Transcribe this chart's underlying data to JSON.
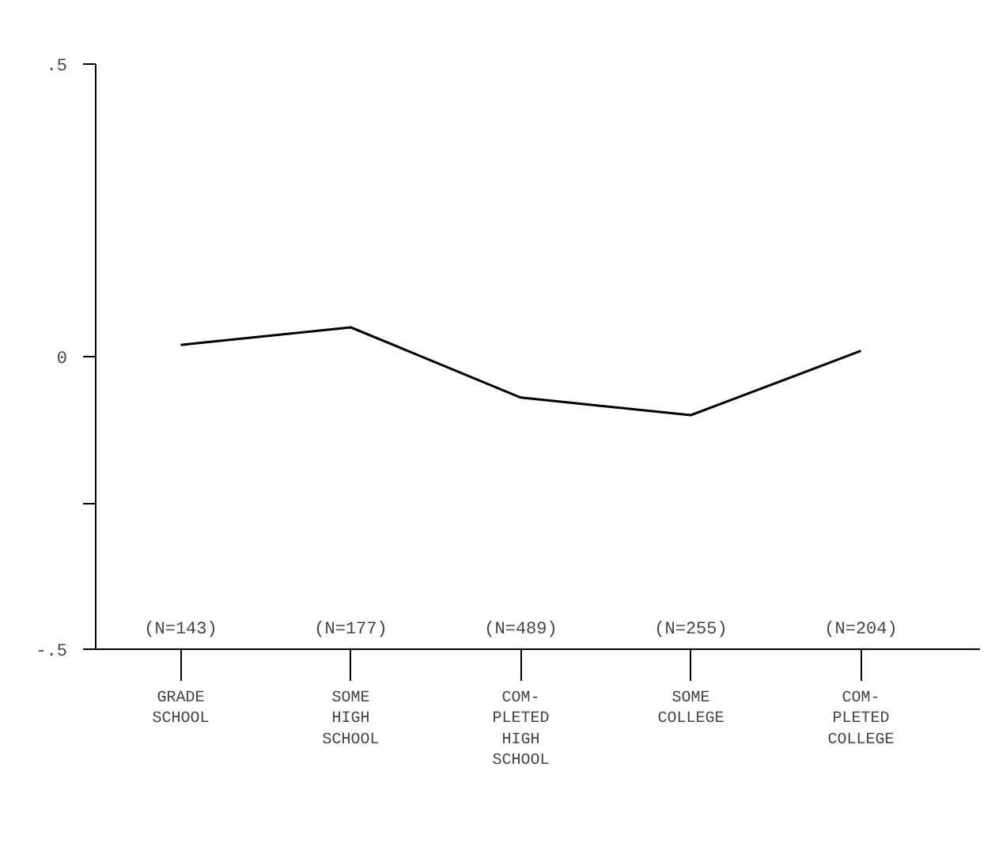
{
  "chart_data": {
    "type": "line",
    "categories": [
      "GRADE\nSCHOOL",
      "SOME\nHIGH\nSCHOOL",
      "COM-\nPLETED\nHIGH\nSCHOOL",
      "SOME\nCOLLEGE",
      "COM-\nPLETED\nCOLLEGE"
    ],
    "values": [
      0.02,
      0.05,
      -0.07,
      -0.1,
      0.01
    ],
    "color": "#000000",
    "ylim": [
      -0.5,
      0.5
    ],
    "yticks": [
      {
        "value": 0.5,
        "label": ".5"
      },
      0,
      {
        "value": -0.25,
        "label": null
      },
      {
        "value": -0.5,
        "label": "-.5"
      }
    ],
    "annotations": [
      "(N=143)",
      "(N=177)",
      "(N=489)",
      "(N=255)",
      "(N=204)"
    ],
    "grid": false,
    "marker": "none",
    "line_style": "solid"
  }
}
